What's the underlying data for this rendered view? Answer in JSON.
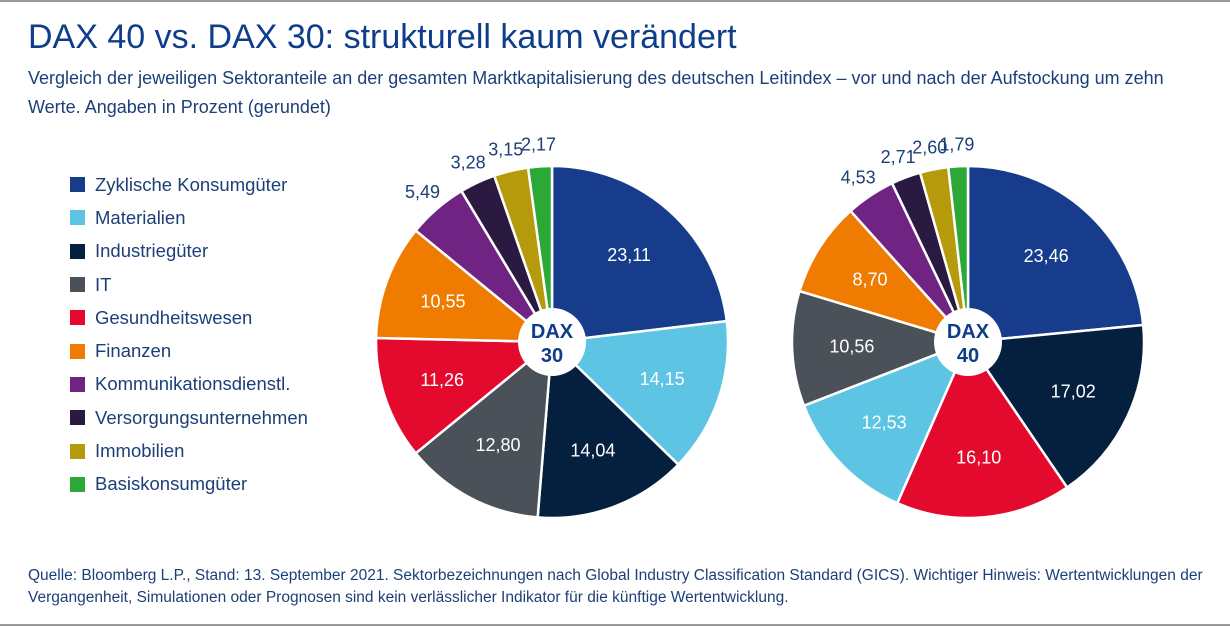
{
  "title": "DAX 40 vs. DAX 30: strukturell kaum verändert",
  "subtitle": "Vergleich der jeweiligen Sektoranteile an der gesamten Marktkapitalisierung des deutschen Leitindex – vor und nach der Aufstockung um zehn Werte. Angaben in Prozent (gerundet)",
  "source": "Quelle: Bloomberg L.P., Stand: 13. September 2021. Sektorbezeichnungen nach Global Industry Classification Standard (GICS). Wichtiger Hinweis: Wertentwicklungen der Vergangenheit, Simulationen oder Prognosen sind kein verlässlicher Indikator für die künftige Wertentwicklung.",
  "colors": {
    "title": "#0e3d8a",
    "text": "#1d3f77"
  },
  "chart_data": [
    {
      "type": "pie",
      "center_label": [
        "DAX",
        "30"
      ],
      "legend_position": "left",
      "slices": [
        {
          "sector": "Zyklische Konsumgüter",
          "value": 23.11,
          "label": "23,11",
          "color": "#173c8c",
          "label_inside": true,
          "label_color": "#ffffff"
        },
        {
          "sector": "Materialien",
          "value": 14.15,
          "label": "14,15",
          "color": "#5ec4e4",
          "label_inside": true,
          "label_color": "#ffffff"
        },
        {
          "sector": "Industriegüter",
          "value": 14.04,
          "label": "14,04",
          "color": "#05203f",
          "label_inside": true,
          "label_color": "#ffffff"
        },
        {
          "sector": "IT",
          "value": 12.8,
          "label": "12,80",
          "color": "#4b5159",
          "label_inside": true,
          "label_color": "#ffffff"
        },
        {
          "sector": "Gesundheitswesen",
          "value": 11.26,
          "label": "11,26",
          "color": "#e30a2d",
          "label_inside": true,
          "label_color": "#ffffff"
        },
        {
          "sector": "Finanzen",
          "value": 10.55,
          "label": "10,55",
          "color": "#ef7c00",
          "label_inside": true,
          "label_color": "#ffffff"
        },
        {
          "sector": "Kommunikationsdienstl.",
          "value": 5.49,
          "label": "5,49",
          "color": "#6f2484",
          "label_inside": false,
          "label_color": "#1d3f77"
        },
        {
          "sector": "Versorgungsunternehmen",
          "value": 3.28,
          "label": "3,28",
          "color": "#2a1a42",
          "label_inside": false,
          "label_color": "#1d3f77"
        },
        {
          "sector": "Immobilien",
          "value": 3.15,
          "label": "3,15",
          "color": "#b59b0b",
          "label_inside": false,
          "label_color": "#1d3f77"
        },
        {
          "sector": "Basiskonsumgüter",
          "value": 2.17,
          "label": "2,17",
          "color": "#2ca837",
          "label_inside": false,
          "label_color": "#1d3f77"
        }
      ]
    },
    {
      "type": "pie",
      "center_label": [
        "DAX",
        "40"
      ],
      "legend_position": "left",
      "slices": [
        {
          "sector": "Zyklische Konsumgüter",
          "value": 23.46,
          "label": "23,46",
          "color": "#173c8c",
          "label_inside": true,
          "label_color": "#ffffff"
        },
        {
          "sector": "Industriegüter",
          "value": 17.02,
          "label": "17,02",
          "color": "#05203f",
          "label_inside": true,
          "label_color": "#ffffff"
        },
        {
          "sector": "Gesundheitswesen",
          "value": 16.1,
          "label": "16,10",
          "color": "#e30a2d",
          "label_inside": true,
          "label_color": "#ffffff"
        },
        {
          "sector": "Materialien",
          "value": 12.53,
          "label": "12,53",
          "color": "#5ec4e4",
          "label_inside": true,
          "label_color": "#ffffff"
        },
        {
          "sector": "IT",
          "value": 10.56,
          "label": "10,56",
          "color": "#4b5159",
          "label_inside": true,
          "label_color": "#ffffff"
        },
        {
          "sector": "Finanzen",
          "value": 8.7,
          "label": "8,70",
          "color": "#ef7c00",
          "label_inside": true,
          "label_color": "#ffffff"
        },
        {
          "sector": "Kommunikationsdienstl.",
          "value": 4.53,
          "label": "4,53",
          "color": "#6f2484",
          "label_inside": false,
          "label_color": "#1d3f77"
        },
        {
          "sector": "Versorgungsunternehmen",
          "value": 2.71,
          "label": "2,71",
          "color": "#2a1a42",
          "label_inside": false,
          "label_color": "#1d3f77"
        },
        {
          "sector": "Immobilien",
          "value": 2.6,
          "label": "2,60",
          "color": "#b59b0b",
          "label_inside": false,
          "label_color": "#1d3f77"
        },
        {
          "sector": "Basiskonsumgüter",
          "value": 1.79,
          "label": "1,79",
          "color": "#2ca837",
          "label_inside": false,
          "label_color": "#1d3f77"
        }
      ]
    }
  ],
  "legend": [
    {
      "label": "Zyklische Konsumgüter",
      "color": "#173c8c"
    },
    {
      "label": "Materialien",
      "color": "#5ec4e4"
    },
    {
      "label": "Industriegüter",
      "color": "#05203f"
    },
    {
      "label": "IT",
      "color": "#4b5159"
    },
    {
      "label": "Gesundheitswesen",
      "color": "#e30a2d"
    },
    {
      "label": "Finanzen",
      "color": "#ef7c00"
    },
    {
      "label": "Kommunikationsdienstl.",
      "color": "#6f2484"
    },
    {
      "label": "Versorgungsunternehmen",
      "color": "#2a1a42"
    },
    {
      "label": "Immobilien",
      "color": "#b59b0b"
    },
    {
      "label": "Basiskonsumgüter",
      "color": "#2ca837"
    }
  ]
}
